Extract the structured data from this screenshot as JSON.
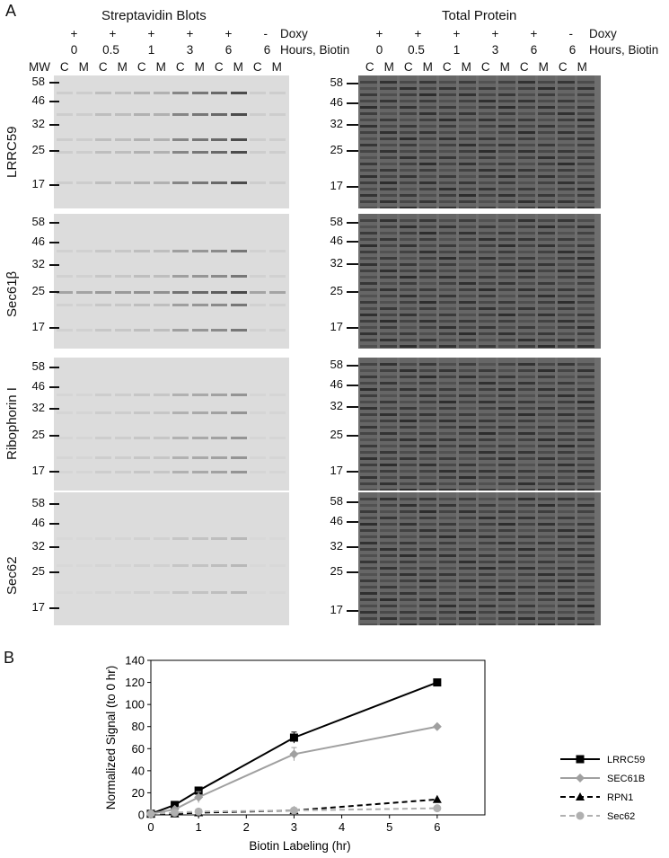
{
  "panel_a_letter": "A",
  "panel_b_letter": "B",
  "left_header": "Streptavidin Blots",
  "right_header": "Total Protein",
  "doxy_label": "Doxy",
  "hours_label": "Hours, Biotin",
  "mw_label": "MW",
  "doxy_values": [
    "+",
    "+",
    "+",
    "+",
    "+",
    "-"
  ],
  "hours_values": [
    "0",
    "0.5",
    "1",
    "3",
    "6",
    "6"
  ],
  "lane_labels": [
    "C",
    "M",
    "C",
    "M",
    "C",
    "M",
    "C",
    "M",
    "C",
    "M",
    "C",
    "M"
  ],
  "mw_markers": [
    "58",
    "46",
    "32",
    "25",
    "17"
  ],
  "blot_rows": [
    "LRRC59",
    "Sec61β",
    "Ribophorin I",
    "Sec62"
  ],
  "chart_data": {
    "type": "line",
    "xlabel": "Biotin Labeling (hr)",
    "ylabel": "Normalized Signal (to 0 hr)",
    "xlim": [
      0,
      7
    ],
    "ylim": [
      0,
      140
    ],
    "xticks": [
      "0",
      "1",
      "2",
      "3",
      "4",
      "5",
      "6"
    ],
    "yticks": [
      "0",
      "20",
      "40",
      "60",
      "80",
      "100",
      "120",
      "140"
    ],
    "x": [
      0,
      0.5,
      1,
      3,
      6
    ],
    "series": [
      {
        "name": "LRRC59",
        "values": [
          1,
          9,
          22,
          70,
          120
        ],
        "errors": [
          0,
          1,
          2,
          5,
          0
        ],
        "color": "#000000",
        "dash": "solid",
        "marker": "square"
      },
      {
        "name": "SEC61B",
        "values": [
          1,
          5,
          16,
          55,
          80
        ],
        "errors": [
          0,
          1,
          5,
          6,
          0
        ],
        "color": "#a0a0a0",
        "dash": "solid",
        "marker": "diamond"
      },
      {
        "name": "RPN1",
        "values": [
          1,
          1,
          2,
          4,
          14
        ],
        "errors": [
          0,
          0,
          0,
          0,
          0
        ],
        "color": "#000000",
        "dash": "dashed",
        "marker": "triangle"
      },
      {
        "name": "Sec62",
        "values": [
          1,
          2,
          3,
          4,
          6
        ],
        "errors": [
          0,
          0,
          0,
          0,
          0
        ],
        "color": "#b0b0b0",
        "dash": "dashed",
        "marker": "circle"
      }
    ],
    "grid": false,
    "legend_position": "right"
  },
  "colors": {
    "strep_background": "#dcdcdc",
    "total_background": "#6e6e6e",
    "axis": "#000000"
  }
}
